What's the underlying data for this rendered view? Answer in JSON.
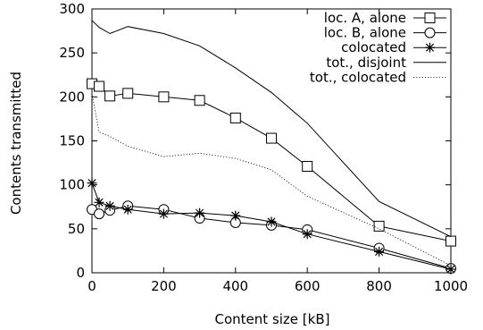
{
  "chart_data": {
    "type": "line",
    "title": "",
    "xlabel": "Content size [kB]",
    "ylabel": "Contents transmitted",
    "xlim": [
      0,
      1000
    ],
    "ylim": [
      0,
      300
    ],
    "xticks": [
      0,
      200,
      400,
      600,
      800,
      1000
    ],
    "yticks": [
      0,
      50,
      100,
      150,
      200,
      250,
      300
    ],
    "grid": false,
    "legend_position": "top-right",
    "series": [
      {
        "name": "loc. A, alone",
        "marker": "square",
        "line": "solid",
        "x": [
          0,
          20,
          50,
          100,
          200,
          300,
          400,
          500,
          600,
          800,
          1000
        ],
        "y": [
          215,
          212,
          201,
          204,
          200,
          196,
          176,
          153,
          121,
          53,
          36
        ]
      },
      {
        "name": "loc. B, alone",
        "marker": "circle",
        "line": "solid",
        "x": [
          0,
          20,
          50,
          100,
          200,
          300,
          400,
          500,
          600,
          800,
          1000
        ],
        "y": [
          72,
          67,
          71,
          76,
          72,
          62,
          57,
          54,
          49,
          28,
          5
        ]
      },
      {
        "name": "colocated",
        "marker": "star",
        "line": "solid",
        "x": [
          0,
          20,
          50,
          100,
          200,
          300,
          400,
          500,
          600,
          800,
          1000
        ],
        "y": [
          102,
          80,
          76,
          72,
          67,
          68,
          65,
          58,
          44,
          24,
          4
        ]
      },
      {
        "name": "tot., disjoint",
        "marker": "none",
        "line": "solid",
        "x": [
          0,
          20,
          50,
          100,
          200,
          300,
          400,
          500,
          600,
          800,
          1000
        ],
        "y": [
          287,
          279,
          272,
          280,
          272,
          258,
          233,
          205,
          170,
          81,
          41
        ]
      },
      {
        "name": "tot., colocated",
        "marker": "none",
        "line": "dotted",
        "x": [
          0,
          20,
          50,
          100,
          200,
          300,
          400,
          500,
          600,
          800,
          1000
        ],
        "y": [
          204,
          160,
          155,
          144,
          132,
          136,
          130,
          117,
          87,
          50,
          8
        ]
      }
    ]
  }
}
